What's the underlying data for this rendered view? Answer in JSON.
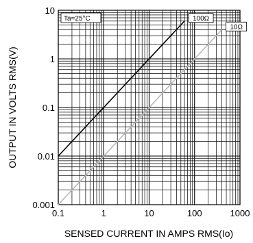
{
  "chart_data": {
    "type": "line",
    "xlabel": "SENSED CURRENT IN AMPS RMS(Io)",
    "ylabel": "OUTPUT IN VOLTS RMS(V)",
    "x_scale": "log",
    "y_scale": "log",
    "xlim": [
      0.1,
      1000
    ],
    "ylim": [
      0.001,
      10
    ],
    "x_ticks": [
      {
        "value": 0.1,
        "label": "0.1"
      },
      {
        "value": 1,
        "label": "1"
      },
      {
        "value": 10,
        "label": "10"
      },
      {
        "value": 100,
        "label": "100"
      },
      {
        "value": 1000,
        "label": "1000"
      }
    ],
    "y_ticks": [
      {
        "value": 0.001,
        "label": "0.001"
      },
      {
        "value": 0.01,
        "label": "0.01"
      },
      {
        "value": 0.1,
        "label": "0.1"
      },
      {
        "value": 1,
        "label": "1"
      },
      {
        "value": 10,
        "label": "10"
      }
    ],
    "grid": true,
    "annotation": "Ta=25°C",
    "series": [
      {
        "name": "100Ω",
        "color": "#000000",
        "x": [
          0.1,
          60
        ],
        "y": [
          0.01,
          6
        ]
      },
      {
        "name": "10Ω",
        "color": "#b8b8b8",
        "x": [
          0.1,
          400
        ],
        "y": [
          0.001,
          4
        ]
      }
    ]
  }
}
